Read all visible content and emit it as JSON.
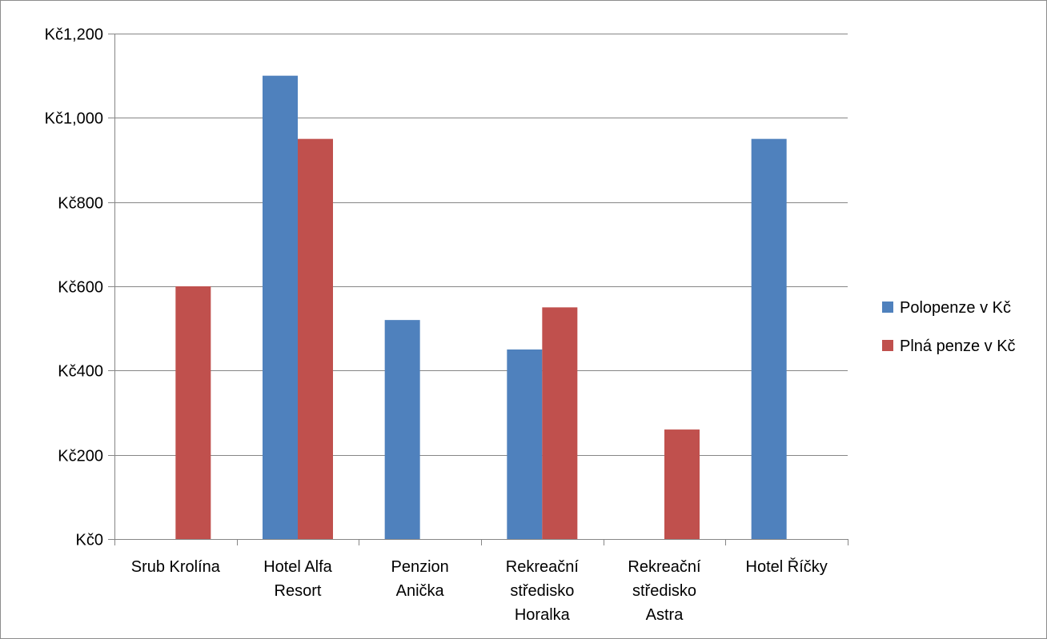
{
  "chart_data": {
    "type": "bar",
    "title": "",
    "xlabel": "",
    "ylabel": "",
    "categories": [
      [
        "Srub Krolína"
      ],
      [
        "Hotel Alfa",
        "Resort"
      ],
      [
        "Penzion",
        "Anička"
      ],
      [
        "Rekreační",
        "středisko",
        "Horalka"
      ],
      [
        "Rekreační",
        "středisko",
        "Astra"
      ],
      [
        "Hotel Říčky"
      ]
    ],
    "series": [
      {
        "name": "Polopenze v Kč",
        "color": "#4f81bd",
        "values": [
          0,
          1100,
          520,
          450,
          0,
          950
        ]
      },
      {
        "name": "Plná penze v Kč",
        "color": "#c0504d",
        "values": [
          600,
          950,
          0,
          550,
          260,
          0
        ]
      }
    ],
    "ylim": [
      0,
      1200
    ],
    "y_ticks": [
      0,
      200,
      400,
      600,
      800,
      1000,
      1200
    ],
    "y_tick_labels": [
      "Kč0",
      "Kč200",
      "Kč400",
      "Kč600",
      "Kč800",
      "Kč1,000",
      "Kč1,200"
    ],
    "grid": true,
    "legend_position": "right"
  }
}
